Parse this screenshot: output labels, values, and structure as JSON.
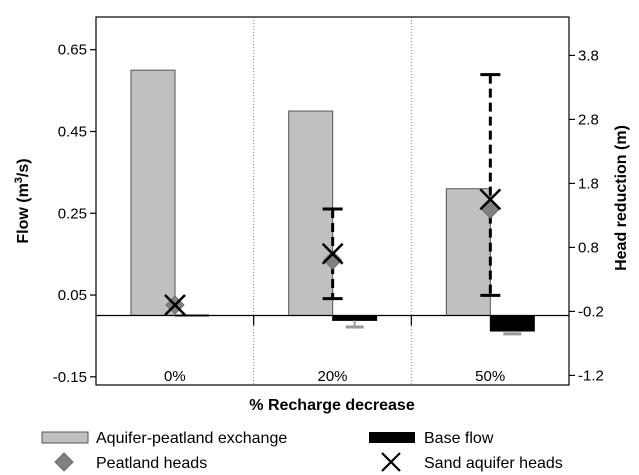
{
  "chart_data": {
    "type": "bar",
    "xlabel": "% Recharge decrease",
    "ylabel": "Flow (m3/s)",
    "ylabel_base": "Flow (m",
    "ylabel_sup": "3",
    "ylabel_tail": "/s)",
    "y2label": "Head reduction (m)",
    "categories": [
      "0%",
      "20%",
      "50%"
    ],
    "ylim": [
      -0.17,
      0.73
    ],
    "y2lim": [
      -1.35,
      4.4
    ],
    "yticks": [
      -0.15,
      0.05,
      0.25,
      0.45,
      0.65
    ],
    "y2ticks": [
      -1.2,
      -0.2,
      0.8,
      1.8,
      2.8,
      3.8
    ],
    "ytick_labels": [
      "-0.15",
      "0.05",
      "0.25",
      "0.45",
      "0.65"
    ],
    "y2tick_labels": [
      "-1.2",
      "-0.2",
      "0.8",
      "1.8",
      "2.8",
      "3.8"
    ],
    "grid": "vertical dotted separators between categories",
    "legend_position": "bottom",
    "series": [
      {
        "name": "Aquifer-peatland exchange",
        "kind": "bar",
        "axis": "left",
        "color": "#c0c0c0",
        "values": [
          0.6,
          0.5,
          0.31
        ]
      },
      {
        "name": "Base flow",
        "kind": "bar",
        "axis": "left",
        "color": "#000000",
        "values": [
          0.0,
          -0.012,
          -0.038
        ],
        "error_low": [
          null,
          -0.028,
          -0.045
        ],
        "error_color": "#999999"
      },
      {
        "name": "Peatland heads",
        "kind": "marker",
        "marker": "diamond",
        "axis": "right",
        "color": "#808080",
        "values": [
          -0.1,
          0.6,
          1.4
        ]
      },
      {
        "name": "Sand aquifer heads",
        "kind": "marker",
        "marker": "x",
        "axis": "right",
        "color": "#000000",
        "values": [
          -0.1,
          0.7,
          1.55
        ],
        "error_low": [
          null,
          0.0,
          0.05
        ],
        "error_high": [
          null,
          1.4,
          3.5
        ]
      }
    ]
  }
}
